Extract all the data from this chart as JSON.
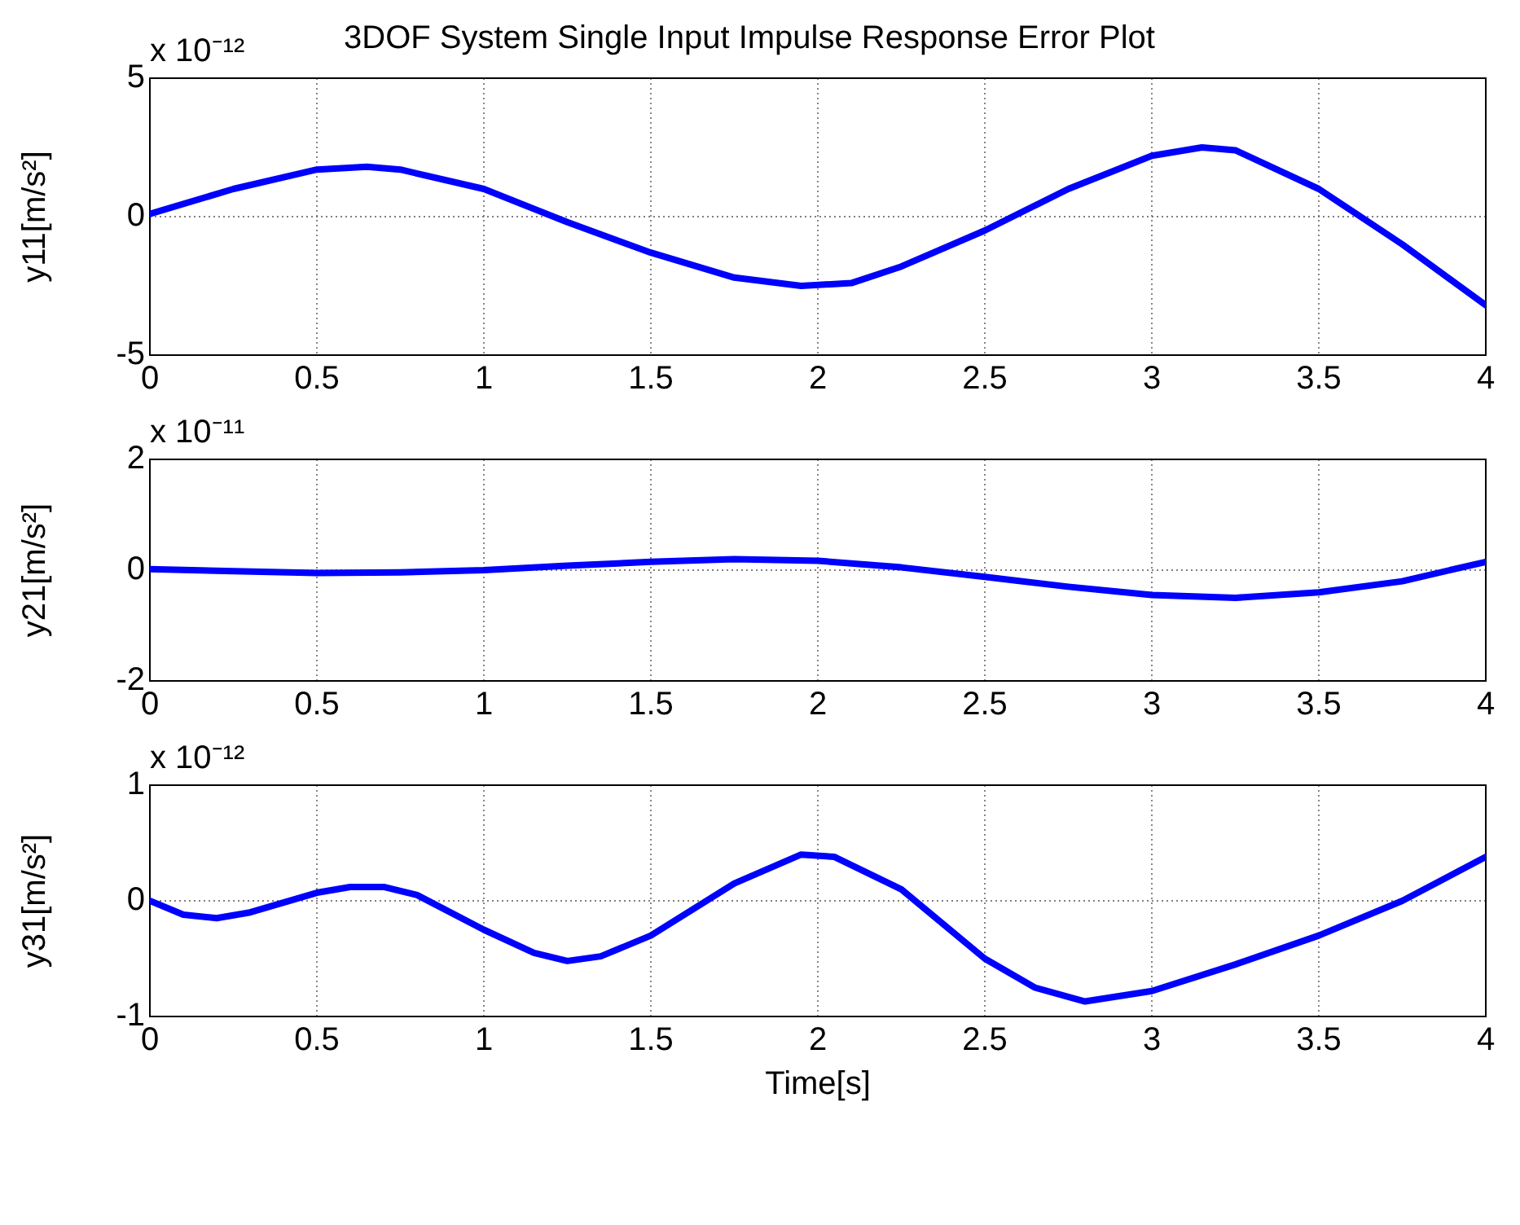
{
  "chart_data": [
    {
      "type": "line",
      "title": "3DOF System Single Input Impulse Response Error Plot",
      "ylabel": "y11[m/s²]",
      "annotations": [
        "x 10⁻¹²"
      ],
      "xlim": [
        0,
        4
      ],
      "xticks": [
        0,
        0.5,
        1,
        1.5,
        2,
        2.5,
        3,
        3.5,
        4
      ],
      "ylim": [
        -5,
        5
      ],
      "yticks": [
        -5,
        0,
        5
      ],
      "grid": true,
      "legend": false,
      "marker": "none",
      "line_style": "solid",
      "x": [
        0,
        0.25,
        0.5,
        0.65,
        0.75,
        1,
        1.25,
        1.5,
        1.75,
        1.95,
        2.1,
        2.25,
        2.5,
        2.75,
        3,
        3.15,
        3.25,
        3.5,
        3.75,
        4
      ],
      "series": [
        {
          "color": "#0000ff",
          "values": [
            0.1,
            1.0,
            1.7,
            1.8,
            1.7,
            1.0,
            -0.2,
            -1.3,
            -2.2,
            -2.5,
            -2.4,
            -1.8,
            -0.5,
            1.0,
            2.2,
            2.5,
            2.4,
            1.0,
            -1.0,
            -3.2
          ]
        }
      ]
    },
    {
      "type": "line",
      "ylabel": "y21[m/s²]",
      "annotations": [
        "x 10⁻¹¹"
      ],
      "xlim": [
        0,
        4
      ],
      "xticks": [
        0,
        0.5,
        1,
        1.5,
        2,
        2.5,
        3,
        3.5,
        4
      ],
      "ylim": [
        -2,
        2
      ],
      "yticks": [
        -2,
        0,
        2
      ],
      "grid": true,
      "legend": false,
      "marker": "none",
      "line_style": "solid",
      "x": [
        0,
        0.25,
        0.5,
        0.75,
        1,
        1.25,
        1.5,
        1.75,
        2,
        2.25,
        2.5,
        2.75,
        3,
        3.25,
        3.5,
        3.75,
        4
      ],
      "series": [
        {
          "color": "#0000ff",
          "values": [
            0.02,
            -0.02,
            -0.05,
            -0.04,
            0,
            0.08,
            0.15,
            0.2,
            0.17,
            0.05,
            -0.12,
            -0.3,
            -0.45,
            -0.5,
            -0.4,
            -0.2,
            0.15
          ]
        }
      ]
    },
    {
      "type": "line",
      "xlabel": "Time[s]",
      "ylabel": "y31[m/s²]",
      "annotations": [
        "x 10⁻¹²"
      ],
      "xlim": [
        0,
        4
      ],
      "xticks": [
        0,
        0.5,
        1,
        1.5,
        2,
        2.5,
        3,
        3.5,
        4
      ],
      "ylim": [
        -1,
        1
      ],
      "yticks": [
        -1,
        0,
        1
      ],
      "grid": true,
      "legend": false,
      "marker": "none",
      "line_style": "solid",
      "x": [
        0,
        0.1,
        0.2,
        0.3,
        0.5,
        0.6,
        0.7,
        0.8,
        1,
        1.15,
        1.25,
        1.35,
        1.5,
        1.75,
        1.95,
        2.05,
        2.25,
        2.5,
        2.65,
        2.8,
        3,
        3.25,
        3.5,
        3.75,
        4
      ],
      "series": [
        {
          "color": "#0000ff",
          "values": [
            0,
            -0.12,
            -0.15,
            -0.1,
            0.07,
            0.12,
            0.12,
            0.05,
            -0.25,
            -0.45,
            -0.52,
            -0.48,
            -0.3,
            0.15,
            0.4,
            0.38,
            0.1,
            -0.5,
            -0.75,
            -0.87,
            -0.78,
            -0.55,
            -0.3,
            0,
            0.38
          ]
        }
      ]
    }
  ]
}
